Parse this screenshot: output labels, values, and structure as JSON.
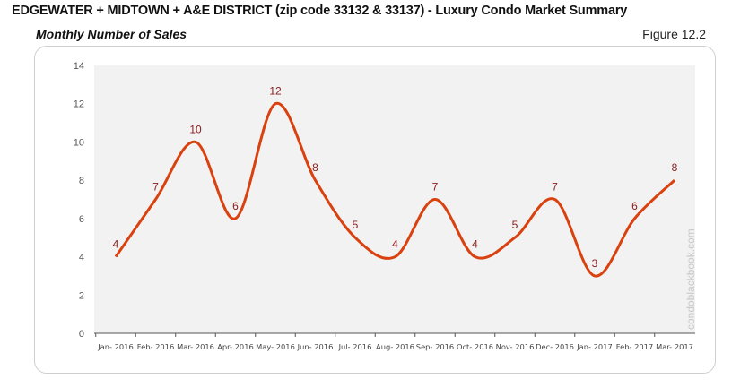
{
  "header": {
    "title": "EDGEWATER + MIDTOWN + A&E DISTRICT (zip code 33132 & 33137) - Luxury Condo Market Summary",
    "subtitle": "Monthly Number of Sales",
    "figure": "Figure 12.2"
  },
  "watermark": "condoblackbook.com",
  "chart_data": {
    "type": "line",
    "title": "Monthly Number of Sales",
    "categories": [
      "Jan- 2016",
      "Feb- 2016",
      "Mar- 2016",
      "Apr- 2016",
      "May- 2016",
      "Jun- 2016",
      "Jul- 2016",
      "Aug- 2016",
      "Sep- 2016",
      "Oct- 2016",
      "Nov- 2016",
      "Dec- 2016",
      "Jan- 2017",
      "Feb- 2017",
      "Mar- 2017"
    ],
    "series": [
      {
        "name": "Number of Sales",
        "values": [
          4,
          7,
          10,
          6,
          12,
          8,
          5,
          4,
          7,
          4,
          5,
          7,
          3,
          6,
          8
        ],
        "color": "#d9410f"
      }
    ],
    "ylim": [
      0,
      14
    ],
    "yticks": [
      0,
      2,
      4,
      6,
      8,
      10,
      12,
      14
    ],
    "xlabel": "",
    "ylabel": "",
    "grid": false,
    "legend": "none",
    "smooth": true,
    "label_color": "#8b1a1a"
  }
}
